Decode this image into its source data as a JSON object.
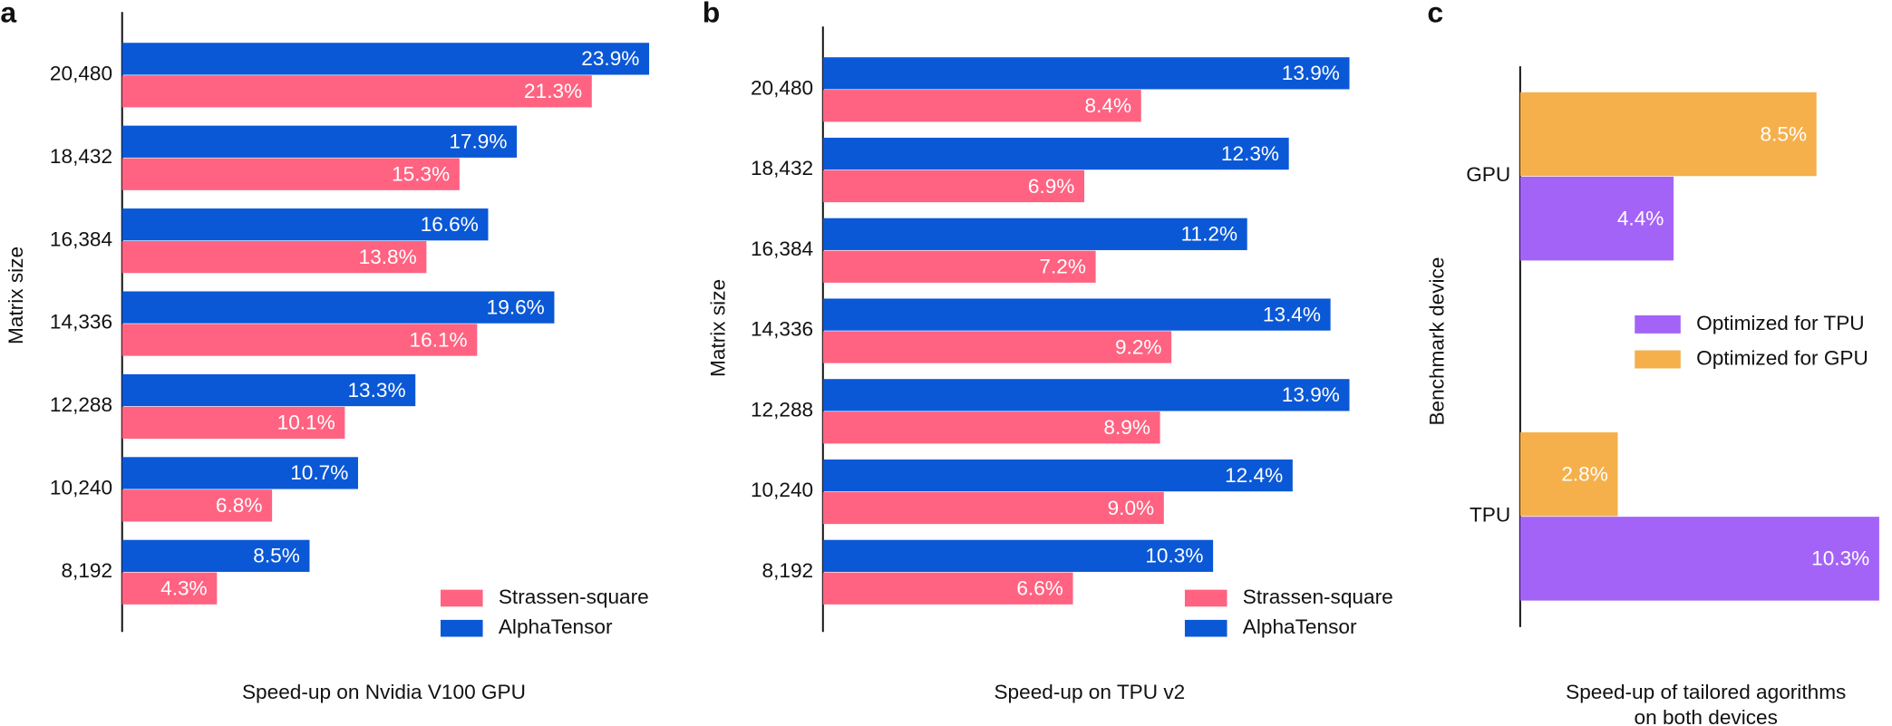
{
  "chart_data": [
    {
      "type": "bar",
      "orientation": "horizontal",
      "label": "a",
      "xlabel": [
        "Speed-up on Nvidia V100 GPU"
      ],
      "ylabel": "Matrix size",
      "categories": [
        "20,480",
        "18,432",
        "16,384",
        "14,336",
        "12,288",
        "10,240",
        "8,192"
      ],
      "series": [
        {
          "name": "Strassen-square",
          "color": "#ff6381",
          "values": [
            21.3,
            15.3,
            13.8,
            16.1,
            10.1,
            6.8,
            4.3
          ],
          "value_labels": [
            "21.3%",
            "15.3%",
            "13.8%",
            "16.1%",
            "10.1%",
            "6.8%",
            "4.3%"
          ]
        },
        {
          "name": "AlphaTensor",
          "color": "#0a58d6",
          "values": [
            23.9,
            17.9,
            16.6,
            19.6,
            13.3,
            10.7,
            8.5
          ],
          "value_labels": [
            "23.9%",
            "17.9%",
            "16.6%",
            "19.6%",
            "13.3%",
            "10.7%",
            "8.5%"
          ]
        }
      ]
    },
    {
      "type": "bar",
      "orientation": "horizontal",
      "label": "b",
      "xlabel": [
        "Speed-up on TPU v2"
      ],
      "ylabel": "Matrix size",
      "categories": [
        "20,480",
        "18,432",
        "16,384",
        "14,336",
        "12,288",
        "10,240",
        "8,192"
      ],
      "series": [
        {
          "name": "Strassen-square",
          "color": "#ff6381",
          "values": [
            8.4,
            6.9,
            7.2,
            9.2,
            8.9,
            9.0,
            6.6
          ],
          "value_labels": [
            "8.4%",
            "6.9%",
            "7.2%",
            "9.2%",
            "8.9%",
            "9.0%",
            "6.6%"
          ]
        },
        {
          "name": "AlphaTensor",
          "color": "#0a58d6",
          "values": [
            13.9,
            12.3,
            11.2,
            13.4,
            13.9,
            12.4,
            10.3
          ],
          "value_labels": [
            "13.9%",
            "12.3%",
            "11.2%",
            "13.4%",
            "13.9%",
            "12.4%",
            "10.3%"
          ]
        }
      ]
    },
    {
      "type": "bar",
      "orientation": "horizontal",
      "label": "c",
      "xlabel": [
        "Speed-up of tailored agorithms",
        "on both devices"
      ],
      "ylabel": "Benchmark device",
      "categories": [
        "GPU",
        "TPU"
      ],
      "series": [
        {
          "name": "Optimized for TPU",
          "color": "#a463f7",
          "values": [
            4.4,
            10.3
          ],
          "value_labels": [
            "4.4%",
            "10.3%"
          ]
        },
        {
          "name": "Optimized for GPU",
          "color": "#f5b04c",
          "values": [
            8.5,
            2.8
          ],
          "value_labels": [
            "8.5%",
            "2.8%"
          ]
        }
      ]
    }
  ]
}
